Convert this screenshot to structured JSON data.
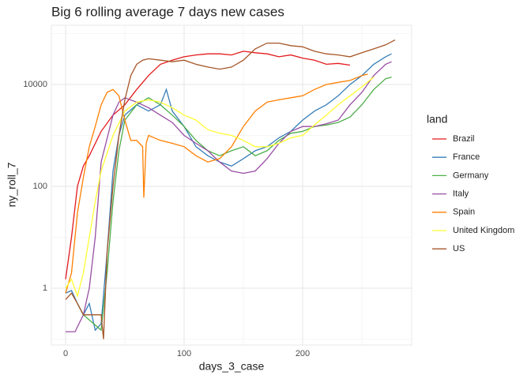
{
  "chart_data": {
    "type": "line",
    "title": "Big 6 rolling average 7 days new cases",
    "x_label": "days_3_case",
    "y_label": "ny_roll_7",
    "legend_title": "land",
    "xlim": [
      -12,
      292
    ],
    "xticks": [
      0,
      100,
      200
    ],
    "xminor": [
      50,
      150,
      250
    ],
    "ylim": [
      0.0765,
      145600
    ],
    "yticks": [
      1,
      100,
      10000
    ],
    "yminor": [
      0.1,
      10,
      1000,
      100000
    ],
    "log_y": true,
    "grid": true,
    "legend": "right",
    "series": [
      {
        "name": "Brazil",
        "color": "#e41a1c",
        "x": [
          0,
          5,
          10,
          15,
          20,
          30,
          40,
          50,
          60,
          70,
          80,
          90,
          100,
          110,
          120,
          130,
          140,
          150,
          160,
          170,
          180,
          190,
          200,
          210,
          220,
          230,
          240
        ],
        "values": [
          1.5,
          10,
          100,
          250,
          400,
          1200,
          2500,
          4000,
          8000,
          15000,
          25000,
          30000,
          35000,
          38000,
          40000,
          40000,
          38000,
          45000,
          42000,
          40000,
          35000,
          38000,
          33000,
          30000,
          25000,
          26000,
          24000
        ]
      },
      {
        "name": "France",
        "color": "#377eb8",
        "x": [
          0,
          5,
          10,
          15,
          20,
          25,
          30,
          35,
          40,
          45,
          50,
          60,
          70,
          80,
          85,
          90,
          100,
          110,
          120,
          130,
          140,
          150,
          160,
          170,
          180,
          190,
          200,
          210,
          220,
          230,
          240,
          250,
          260,
          270,
          275
        ],
        "values": [
          0.8,
          0.9,
          0.5,
          0.3,
          0.5,
          0.15,
          0.2,
          5,
          200,
          1000,
          2500,
          4000,
          3000,
          4000,
          8000,
          3000,
          1500,
          600,
          400,
          300,
          250,
          350,
          500,
          600,
          900,
          1200,
          2000,
          3000,
          4000,
          6000,
          10000,
          15000,
          25000,
          35000,
          40000
        ]
      },
      {
        "name": "Germany",
        "color": "#4daf4a",
        "x": [
          10,
          15,
          30,
          35,
          40,
          45,
          50,
          60,
          70,
          80,
          90,
          100,
          110,
          120,
          130,
          140,
          150,
          160,
          170,
          180,
          190,
          200,
          210,
          220,
          230,
          240,
          250,
          260,
          270,
          275
        ],
        "values": [
          0.5,
          0.3,
          0.15,
          2,
          50,
          500,
          2000,
          4000,
          5500,
          4000,
          2500,
          1500,
          800,
          500,
          400,
          500,
          600,
          400,
          500,
          800,
          1100,
          1200,
          1500,
          1600,
          1800,
          2300,
          4000,
          8000,
          13000,
          14000
        ]
      },
      {
        "name": "Italy",
        "color": "#984ea3",
        "x": [
          0,
          8,
          15,
          20,
          25,
          30,
          40,
          45,
          50,
          60,
          70,
          80,
          90,
          100,
          110,
          120,
          130,
          140,
          150,
          160,
          170,
          180,
          190,
          200,
          210,
          220,
          230,
          240,
          250,
          260,
          270,
          275
        ],
        "values": [
          0.14,
          0.14,
          0.3,
          1,
          10,
          300,
          2500,
          4500,
          5500,
          4500,
          3500,
          2500,
          1800,
          1000,
          700,
          500,
          300,
          200,
          180,
          200,
          350,
          700,
          1200,
          1500,
          1500,
          1700,
          2000,
          4000,
          7000,
          15000,
          25000,
          28000
        ]
      },
      {
        "name": "Spain",
        "color": "#ff7f00",
        "x": [
          0,
          5,
          10,
          15,
          20,
          25,
          30,
          35,
          40,
          45,
          50,
          55,
          60,
          65,
          66,
          68,
          70,
          80,
          90,
          100,
          110,
          120,
          130,
          140,
          150,
          160,
          170,
          180,
          190,
          200,
          210,
          220,
          230,
          240,
          250,
          255
        ],
        "values": [
          0.8,
          2,
          30,
          150,
          600,
          1500,
          4000,
          7000,
          8000,
          6000,
          2000,
          800,
          800,
          600,
          60,
          700,
          1000,
          800,
          700,
          600,
          400,
          300,
          350,
          600,
          1500,
          3000,
          4500,
          5000,
          5500,
          6000,
          8000,
          10000,
          11000,
          12000,
          15000,
          16000
        ]
      },
      {
        "name": "United Kingdom",
        "color": "#ffff33",
        "x": [
          0,
          5,
          10,
          15,
          20,
          25,
          30,
          40,
          50,
          60,
          70,
          80,
          90,
          100,
          110,
          120,
          130,
          140,
          150,
          160,
          170,
          180,
          190,
          200,
          210,
          220,
          230,
          240,
          250,
          260
        ],
        "values": [
          1,
          1.5,
          0.7,
          2,
          10,
          50,
          200,
          1000,
          3000,
          4500,
          5000,
          4500,
          3500,
          2500,
          2000,
          1300,
          1100,
          1000,
          800,
          600,
          600,
          700,
          900,
          1000,
          1600,
          2500,
          4000,
          6000,
          9000,
          14000
        ]
      },
      {
        "name": "US",
        "color": "#a65628",
        "x": [
          0,
          5,
          10,
          15,
          20,
          25,
          30,
          32,
          35,
          40,
          45,
          50,
          55,
          60,
          65,
          70,
          80,
          90,
          100,
          110,
          120,
          130,
          140,
          150,
          160,
          170,
          180,
          190,
          200,
          210,
          220,
          230,
          240,
          250,
          260,
          270,
          278
        ],
        "values": [
          0.6,
          0.8,
          0.5,
          0.3,
          0.3,
          0.3,
          0.3,
          0.1,
          5,
          100,
          1000,
          5000,
          15000,
          25000,
          30000,
          32000,
          30000,
          28000,
          30000,
          25000,
          22000,
          20000,
          22000,
          30000,
          50000,
          65000,
          65000,
          58000,
          55000,
          45000,
          40000,
          38000,
          35000,
          42000,
          50000,
          60000,
          75000
        ]
      }
    ]
  }
}
